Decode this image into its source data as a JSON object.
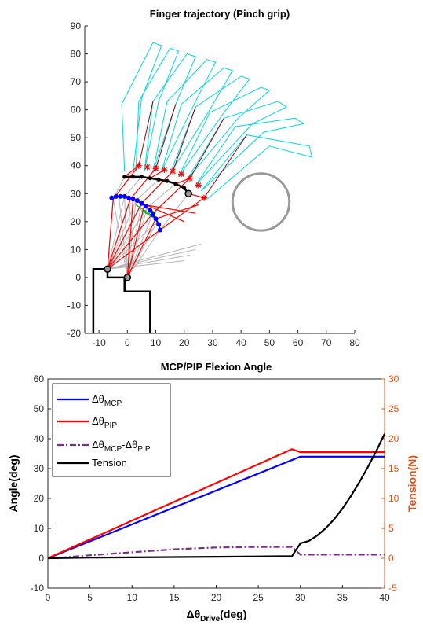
{
  "chart_data": [
    {
      "type": "line",
      "title": "Finger trajectory (Pinch grip)",
      "xlim": [
        -15,
        80
      ],
      "ylim": [
        -20,
        90
      ],
      "xticks": [
        -10,
        0,
        10,
        20,
        30,
        40,
        50,
        60,
        70,
        80
      ],
      "yticks": [
        -20,
        -10,
        0,
        10,
        20,
        30,
        40,
        50,
        60,
        70,
        80,
        90
      ],
      "grid": false,
      "colors": {
        "base": "#000000",
        "finger_outline": "#00d7e0",
        "link_gray": "#b4b4b4",
        "mcp_path": "#0000ff",
        "pip_path": "#000000",
        "tip_path": "#ff0000",
        "cable_red": "#ff0000",
        "cable_dark": "#8b0000",
        "green": "#00a000",
        "object": "#999999"
      },
      "base_polygon": [
        [
          -12,
          -20
        ],
        [
          -12,
          3
        ],
        [
          -7,
          3
        ],
        [
          -7,
          0
        ],
        [
          -1,
          0
        ],
        [
          -1,
          -5
        ],
        [
          8,
          -5
        ],
        [
          8,
          -20
        ]
      ],
      "joints": [
        [
          -7,
          3
        ],
        [
          0,
          0
        ]
      ],
      "object_circle": {
        "cx": 47,
        "cy": 27,
        "r": 10
      },
      "mcp_trajectory": [
        [
          -5.5,
          28.5
        ],
        [
          -4,
          29
        ],
        [
          -2.5,
          29
        ],
        [
          -1,
          29
        ],
        [
          0.5,
          28.5
        ],
        [
          2,
          28
        ],
        [
          3.5,
          27.5
        ],
        [
          5,
          26.5
        ],
        [
          6.5,
          25.5
        ],
        [
          8,
          24
        ],
        [
          9,
          22.5
        ],
        [
          10,
          21
        ],
        [
          11,
          19
        ],
        [
          11.5,
          17
        ]
      ],
      "pip_trajectory": [
        [
          -1,
          36
        ],
        [
          2,
          36
        ],
        [
          5,
          36
        ],
        [
          8,
          35.5
        ],
        [
          11,
          35
        ],
        [
          14,
          34.5
        ],
        [
          17,
          33.5
        ],
        [
          20,
          32
        ],
        [
          21.5,
          30
        ]
      ],
      "tip_trajectory": [
        [
          4,
          40
        ],
        [
          7,
          39.5
        ],
        [
          10,
          39
        ],
        [
          13,
          38.5
        ],
        [
          16,
          38
        ],
        [
          19,
          37
        ],
        [
          22,
          35.5
        ],
        [
          25,
          33
        ],
        [
          27,
          28.5
        ]
      ],
      "finger_outline_segments": [
        [
          [
            -1,
            38
          ],
          [
            -2,
            62
          ],
          [
            9,
            84
          ],
          [
            12,
            83
          ],
          [
            5,
            64
          ],
          [
            2,
            38
          ]
        ],
        [
          [
            3,
            38
          ],
          [
            4,
            63
          ],
          [
            15,
            82
          ],
          [
            18,
            81
          ],
          [
            11,
            63
          ],
          [
            6,
            38
          ]
        ],
        [
          [
            6,
            38
          ],
          [
            9,
            63
          ],
          [
            21,
            80
          ],
          [
            24,
            79
          ],
          [
            17,
            62
          ],
          [
            9,
            38
          ]
        ],
        [
          [
            9,
            38
          ],
          [
            14,
            63
          ],
          [
            28,
            78
          ],
          [
            31,
            77
          ],
          [
            23,
            61
          ],
          [
            12,
            38
          ]
        ],
        [
          [
            12,
            38
          ],
          [
            19,
            62
          ],
          [
            34,
            75
          ],
          [
            37,
            74
          ],
          [
            29,
            60
          ],
          [
            15,
            37
          ]
        ],
        [
          [
            15,
            37
          ],
          [
            24,
            61
          ],
          [
            40,
            72
          ],
          [
            43,
            71
          ],
          [
            34,
            59
          ],
          [
            18,
            36
          ]
        ],
        [
          [
            18,
            36
          ],
          [
            29,
            59
          ],
          [
            47,
            68
          ],
          [
            50,
            67
          ],
          [
            39,
            57
          ],
          [
            21,
            35
          ]
        ],
        [
          [
            21,
            35
          ],
          [
            34,
            57
          ],
          [
            53,
            63
          ],
          [
            56,
            61
          ],
          [
            44,
            55
          ],
          [
            24,
            33
          ]
        ],
        [
          [
            24,
            33
          ],
          [
            38,
            54
          ],
          [
            59,
            57
          ],
          [
            62,
            55
          ],
          [
            48,
            52
          ],
          [
            26,
            31
          ]
        ],
        [
          [
            26,
            31
          ],
          [
            42,
            51
          ],
          [
            64,
            47
          ],
          [
            65,
            43
          ],
          [
            50,
            47
          ],
          [
            28,
            28
          ]
        ]
      ],
      "link_gray_lines": [
        [
          [
            0,
            0
          ],
          [
            -5,
            28
          ]
        ],
        [
          [
            0,
            0
          ],
          [
            -3,
            29
          ]
        ],
        [
          [
            0,
            0
          ],
          [
            -1,
            29
          ]
        ],
        [
          [
            0,
            0
          ],
          [
            1,
            28
          ]
        ],
        [
          [
            0,
            0
          ],
          [
            3,
            27.5
          ]
        ],
        [
          [
            0,
            0
          ],
          [
            5,
            26.5
          ]
        ],
        [
          [
            0,
            0
          ],
          [
            7,
            25
          ]
        ],
        [
          [
            0,
            0
          ],
          [
            9,
            23
          ]
        ],
        [
          [
            0,
            0
          ],
          [
            10.5,
            20
          ]
        ],
        [
          [
            0,
            0
          ],
          [
            11.5,
            17
          ]
        ],
        [
          [
            -7,
            3
          ],
          [
            -5,
            28
          ]
        ],
        [
          [
            -7,
            3
          ],
          [
            -1,
            29
          ]
        ],
        [
          [
            -7,
            3
          ],
          [
            3,
            27.5
          ]
        ],
        [
          [
            -7,
            3
          ],
          [
            7,
            25
          ]
        ],
        [
          [
            -7,
            3
          ],
          [
            10.5,
            20
          ]
        ],
        [
          [
            -5,
            28
          ],
          [
            -1,
            36
          ]
        ],
        [
          [
            -1,
            29
          ],
          [
            5,
            36
          ]
        ],
        [
          [
            3,
            27.5
          ],
          [
            11,
            35
          ]
        ],
        [
          [
            7,
            25
          ],
          [
            17,
            33.5
          ]
        ],
        [
          [
            11.5,
            17
          ],
          [
            21.5,
            30
          ]
        ],
        [
          [
            -7,
            3
          ],
          [
            20,
            6
          ]
        ],
        [
          [
            -7,
            3
          ],
          [
            22,
            8
          ]
        ],
        [
          [
            -7,
            3
          ],
          [
            24,
            10
          ]
        ],
        [
          [
            -7,
            3
          ],
          [
            26,
            12
          ]
        ]
      ],
      "cable_red_lines": [
        [
          [
            -7,
            3
          ],
          [
            -5,
            28
          ]
        ],
        [
          [
            -7,
            3
          ],
          [
            1,
            28
          ]
        ],
        [
          [
            -7,
            3
          ],
          [
            5,
            26.5
          ]
        ],
        [
          [
            -7,
            3
          ],
          [
            9,
            23
          ]
        ],
        [
          [
            -7,
            3
          ],
          [
            11.5,
            17
          ]
        ],
        [
          [
            0,
            0
          ],
          [
            2,
            28
          ]
        ],
        [
          [
            0,
            0
          ],
          [
            6,
            26
          ]
        ],
        [
          [
            0,
            0
          ],
          [
            10,
            21
          ]
        ],
        [
          [
            -5,
            28
          ],
          [
            4,
            40
          ]
        ],
        [
          [
            1,
            28
          ],
          [
            10,
            39
          ]
        ],
        [
          [
            5,
            26.5
          ],
          [
            16,
            38
          ]
        ],
        [
          [
            9,
            23
          ],
          [
            22,
            35.5
          ]
        ],
        [
          [
            11.5,
            17
          ],
          [
            27,
            28.5
          ]
        ],
        [
          [
            -1,
            36
          ],
          [
            4,
            40
          ]
        ],
        [
          [
            8,
            35.5
          ],
          [
            13,
            38.5
          ]
        ],
        [
          [
            17,
            33.5
          ],
          [
            22,
            35.5
          ]
        ],
        [
          [
            21.5,
            30
          ],
          [
            27,
            28.5
          ]
        ],
        [
          [
            2,
            28
          ],
          [
            20,
            20
          ]
        ],
        [
          [
            6,
            26
          ],
          [
            24,
            23
          ]
        ],
        [
          [
            10,
            21
          ],
          [
            25,
            26
          ]
        ]
      ],
      "cable_dark_lines": [
        [
          [
            4,
            40
          ],
          [
            9,
            63
          ]
        ],
        [
          [
            10,
            39
          ],
          [
            17,
            62
          ]
        ],
        [
          [
            16,
            38
          ],
          [
            24,
            61
          ]
        ],
        [
          [
            22,
            35.5
          ],
          [
            34,
            57
          ]
        ],
        [
          [
            27,
            28.5
          ],
          [
            42,
            51
          ]
        ]
      ],
      "green_lines": [
        [
          [
            3,
            26
          ],
          [
            9,
            22
          ]
        ],
        [
          [
            4,
            27
          ],
          [
            10,
            23
          ]
        ],
        [
          [
            5,
            24
          ],
          [
            10,
            21
          ]
        ]
      ]
    },
    {
      "type": "line",
      "title": "MCP/PIP Flexion Angle",
      "xlabel_prefix": "Δθ",
      "xlabel_sub": "Drive",
      "xlabel_suffix": "(deg)",
      "ylabel": "Angle(deg)",
      "ylabel_right": "Tension(N)",
      "xlim": [
        0,
        40
      ],
      "ylim": [
        -10,
        60
      ],
      "ylim_right": [
        -5,
        30
      ],
      "xticks": [
        0,
        5,
        10,
        15,
        20,
        25,
        30,
        35,
        40
      ],
      "yticks": [
        -10,
        0,
        10,
        20,
        30,
        40,
        50,
        60
      ],
      "yticks_right": [
        -5,
        0,
        5,
        10,
        15,
        20,
        25,
        30
      ],
      "grid": false,
      "legend_position": "top-left",
      "legend": [
        {
          "prefix": "Δθ",
          "sub": "MCP",
          "suffix": ""
        },
        {
          "prefix": "Δθ",
          "sub": "PIP",
          "suffix": ""
        },
        {
          "prefix": "Δθ",
          "sub": "MCP",
          "suffix": "-Δθ",
          "sub2": "PIP"
        },
        {
          "prefix": "Tension",
          "sub": "",
          "suffix": ""
        }
      ],
      "series": [
        {
          "color": "#0000ff",
          "dash": "none",
          "axis": "left",
          "x": [
            0,
            30,
            40
          ],
          "y": [
            0,
            34,
            34
          ]
        },
        {
          "color": "#ff0000",
          "dash": "none",
          "axis": "left",
          "x": [
            0,
            29,
            30,
            40
          ],
          "y": [
            0,
            36.5,
            35.5,
            35.5
          ]
        },
        {
          "color": "#7e2f8e",
          "dash": "8,3,2,3",
          "axis": "left",
          "x": [
            0,
            2,
            5,
            10,
            15,
            20,
            25,
            29,
            30,
            40
          ],
          "y": [
            0,
            0.3,
            1,
            2,
            3,
            3.6,
            3.8,
            3.8,
            1.2,
            1.2
          ]
        },
        {
          "color": "#000000",
          "dash": "none",
          "axis": "right",
          "x": [
            0,
            5,
            10,
            15,
            20,
            25,
            29,
            30,
            31,
            32,
            33,
            34,
            35,
            36,
            37,
            38,
            39,
            40
          ],
          "y": [
            0,
            0.1,
            0.15,
            0.2,
            0.25,
            0.3,
            0.35,
            2.5,
            2.9,
            3.8,
            5.0,
            6.5,
            8.3,
            10.4,
            12.7,
            15.2,
            17.9,
            20.8
          ]
        }
      ]
    }
  ]
}
